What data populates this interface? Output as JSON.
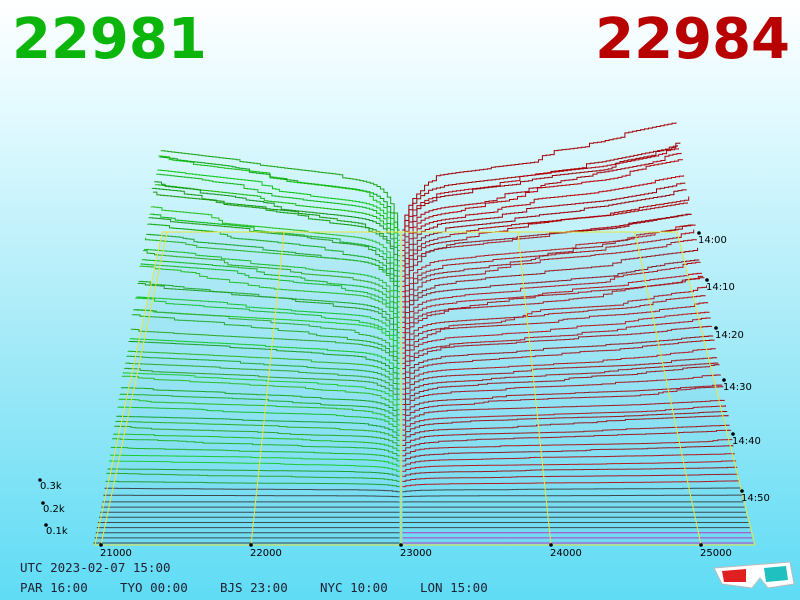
{
  "bid": "22981",
  "ask": "22984",
  "price_axis": {
    "ticks": [
      "21000",
      "22000",
      "23000",
      "24000",
      "25000"
    ]
  },
  "depth_axis": {
    "ticks": [
      "0.3k",
      "0.2k",
      "0.1k"
    ]
  },
  "time_axis": {
    "ticks": [
      "14:00",
      "14:10",
      "14:20",
      "14:30",
      "14:40",
      "14:50"
    ]
  },
  "clock": {
    "utc": "UTC 2023-02-07 15:00",
    "cities": [
      "PAR 16:00",
      "TYO 00:00",
      "BJS 23:00",
      "NYC 10:00",
      "LON 15:00"
    ]
  }
}
